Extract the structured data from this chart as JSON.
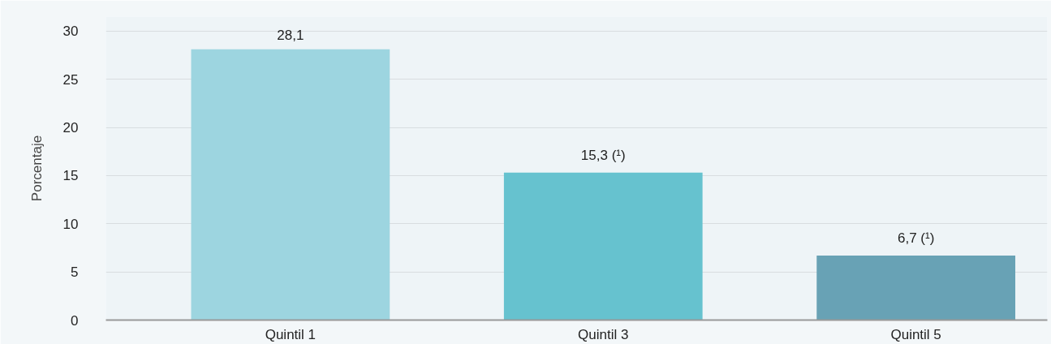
{
  "chart_data": {
    "type": "bar",
    "ylabel": "Porcentaje",
    "categories": [
      "Quintil 1",
      "Quintil 3",
      "Quintil 5"
    ],
    "values": [
      28.1,
      15.3,
      6.7
    ],
    "colors": [
      "#9dd5e0",
      "#66c2cf",
      "#68a2b5"
    ],
    "value_labels": [
      "28,1",
      "15,3 (¹)",
      "6,7 (¹)"
    ],
    "ylim": [
      0,
      31.5
    ],
    "yticks": [
      0,
      5,
      10,
      15,
      20,
      25,
      30
    ],
    "grid": "y"
  }
}
